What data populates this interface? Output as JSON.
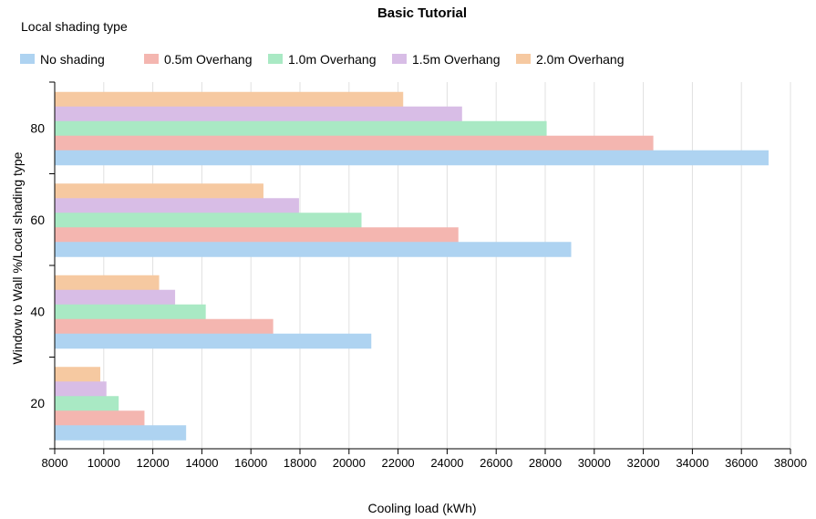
{
  "chart_data": {
    "type": "bar",
    "orientation": "horizontal",
    "title": "Basic Tutorial",
    "legend_title": "Local shading type",
    "xlabel": "Cooling load (kWh)",
    "ylabel": "Window to Wall %/Local shading type",
    "categories": [
      "80",
      "60",
      "40",
      "20"
    ],
    "xlim": [
      8000,
      38000
    ],
    "x_ticks": [
      8000,
      10000,
      12000,
      14000,
      16000,
      18000,
      20000,
      22000,
      24000,
      26000,
      28000,
      30000,
      32000,
      34000,
      36000,
      38000
    ],
    "grid": true,
    "legend_position": "top",
    "series": [
      {
        "name": "No shading",
        "color": "#aed3f1",
        "values": [
          37100,
          29050,
          20900,
          13350
        ]
      },
      {
        "name": "0.5m Overhang",
        "color": "#f4b6b0",
        "values": [
          32400,
          24450,
          16900,
          11650
        ]
      },
      {
        "name": "1.0m Overhang",
        "color": "#a9e9c4",
        "values": [
          28050,
          20500,
          14150,
          10600
        ]
      },
      {
        "name": "1.5m Overhang",
        "color": "#d8bde6",
        "values": [
          24600,
          17950,
          12900,
          10100
        ]
      },
      {
        "name": "2.0m Overhang",
        "color": "#f6c9a1",
        "values": [
          22200,
          16500,
          12250,
          9850
        ]
      }
    ]
  }
}
